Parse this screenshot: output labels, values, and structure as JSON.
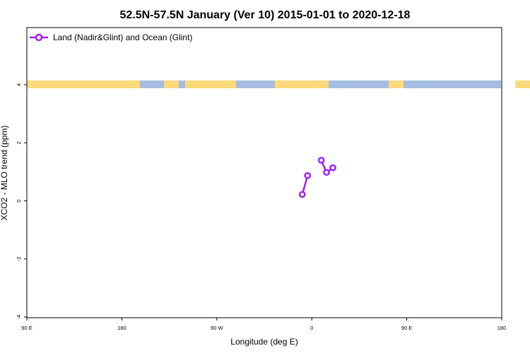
{
  "chart_data": {
    "type": "line",
    "title": "52.5N-57.5N January (Ver 10)   2015-01-01 to 2020-12-18",
    "xlabel": "Longitude (deg E)",
    "ylabel": "XCO2 - MLO trend (ppm)",
    "xlim": [
      90,
      450
    ],
    "ylim": [
      -4,
      6
    ],
    "x_ticks": [
      {
        "value": 90,
        "label": "90 E"
      },
      {
        "value": 180,
        "label": "180"
      },
      {
        "value": 270,
        "label": "90 W"
      },
      {
        "value": 360,
        "label": "0"
      },
      {
        "value": 450,
        "label": "90 E"
      },
      {
        "value": 540,
        "label": "180"
      }
    ],
    "y_ticks": [
      {
        "value": -4,
        "label": "-4"
      },
      {
        "value": -2,
        "label": "-2"
      },
      {
        "value": 0,
        "label": "0"
      },
      {
        "value": 2,
        "label": "2"
      },
      {
        "value": 4,
        "label": "4"
      }
    ],
    "legend": {
      "position": "top-left",
      "entries": [
        "Land (Nadir&Glint) and Ocean (Glint)"
      ]
    },
    "series": [
      {
        "name": "Land (Nadir&Glint) and Ocean (Glint)",
        "color": "#a020f0",
        "segments": [
          [
            {
              "x": 351,
              "y": 0.22
            },
            {
              "x": 356,
              "y": 0.87
            }
          ],
          [
            {
              "x": 369,
              "y": 1.4
            },
            {
              "x": 374,
              "y": 0.98
            },
            {
              "x": 380,
              "y": 1.14
            }
          ]
        ]
      }
    ],
    "land_mask_band": {
      "y": 4,
      "land_color": "#ffd97a",
      "ocean_color": "#a5bde0"
    },
    "grid": false
  }
}
